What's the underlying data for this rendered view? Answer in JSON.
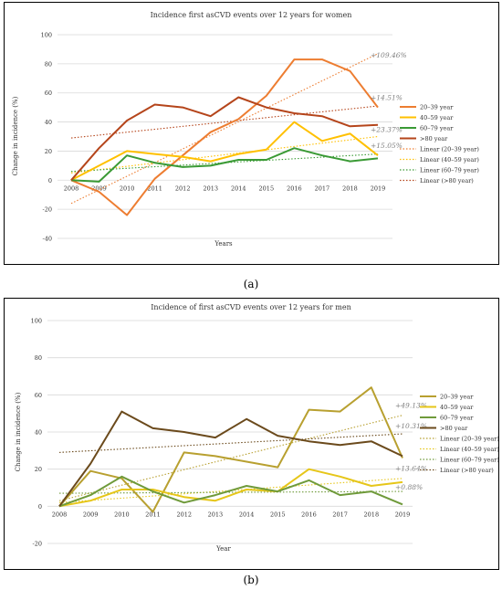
{
  "captions": [
    "(a)",
    "(b)"
  ],
  "legend_colors": [
    "#e8742a",
    "#f5b400",
    "#339933",
    "#b0401a"
  ],
  "chart_data": [
    {
      "type": "line",
      "title": "Incidence first asCVD events over 12 years for women",
      "xlabel": "Years",
      "ylabel": "Change in incidence (%)",
      "ylim": [
        -40,
        100
      ],
      "yticks": [
        -40,
        -20,
        0,
        20,
        40,
        60,
        80,
        100
      ],
      "grid": true,
      "legend_position": "right",
      "categories": [
        "2008",
        "2009",
        "2010",
        "2011",
        "2012",
        "2013",
        "2014",
        "2015",
        "2016",
        "2017",
        "2018",
        "2019"
      ],
      "series": [
        {
          "name": "20–39 year",
          "color": "#ed7d31",
          "values": [
            0,
            -8,
            -24,
            1,
            17,
            33,
            42,
            58,
            83,
            83,
            75,
            50
          ]
        },
        {
          "name": "40–59 year",
          "color": "#ffc000",
          "values": [
            0,
            10,
            20,
            18,
            16,
            13,
            18,
            21,
            40,
            27,
            32,
            17
          ]
        },
        {
          "name": "60–79 year",
          "color": "#3a9a35",
          "values": [
            0,
            -1,
            17,
            12,
            9,
            10,
            14,
            14,
            22,
            17,
            13,
            15
          ]
        },
        {
          "name": ">80 year",
          "color": "#b5451b",
          "values": [
            0,
            22,
            41,
            52,
            50,
            44,
            57,
            50,
            46,
            44,
            37,
            38
          ]
        }
      ],
      "trendlines": [
        {
          "name": "Linear (20–39 year)",
          "color": "#ed7d31",
          "start": -16,
          "end": 87
        },
        {
          "name": "Linear (40–59 year)",
          "color": "#ffc000",
          "start": 5,
          "end": 30
        },
        {
          "name": "Linear (60–79 year)",
          "color": "#3a9a35",
          "start": 6,
          "end": 18
        },
        {
          "name": "Linear (>80 year)",
          "color": "#b5451b",
          "start": 29,
          "end": 51
        }
      ],
      "annotations": [
        {
          "text": "+109.46%",
          "x": "2019",
          "y": 83
        },
        {
          "text": "+14.51%",
          "x": "2019",
          "y": 54
        },
        {
          "text": "+23.37%",
          "x": "2019",
          "y": 32
        },
        {
          "text": "+15.05%",
          "x": "2019",
          "y": 21
        }
      ]
    },
    {
      "type": "line",
      "title": "Incidence of first asCVD events over 12 years for men",
      "xlabel": "Year",
      "ylabel": "Change in incidence (%)",
      "ylim": [
        -20,
        100
      ],
      "yticks": [
        -20,
        0,
        20,
        40,
        60,
        80,
        100
      ],
      "grid": true,
      "legend_position": "right",
      "categories": [
        "2008",
        "2009",
        "2010",
        "2011",
        "2012",
        "2013",
        "2014",
        "2015",
        "2016",
        "2017",
        "2018",
        "2019"
      ],
      "series": [
        {
          "name": "20–39 year",
          "color": "#b8a030",
          "values": [
            0,
            19,
            15,
            -3,
            29,
            27,
            24,
            21,
            52,
            51,
            64,
            26
          ]
        },
        {
          "name": "40–59 year",
          "color": "#e6c619",
          "values": [
            0,
            3,
            9,
            9,
            5,
            3,
            9,
            8,
            20,
            16,
            11,
            13
          ]
        },
        {
          "name": "60–79 year",
          "color": "#6f9a3a",
          "values": [
            0,
            6,
            16,
            8,
            2,
            6,
            11,
            8,
            14,
            6,
            8,
            1
          ]
        },
        {
          "name": ">80 year",
          "color": "#6b4a1c",
          "values": [
            0,
            23,
            51,
            42,
            40,
            37,
            47,
            38,
            35,
            33,
            35,
            27
          ]
        }
      ],
      "trendlines": [
        {
          "name": "Linear (20–39 year)",
          "color": "#b8a030",
          "start": 3,
          "end": 49
        },
        {
          "name": "Linear (40–59 year)",
          "color": "#e6c619",
          "start": 2,
          "end": 15
        },
        {
          "name": "Linear (60–79 year)",
          "color": "#6f9a3a",
          "start": 7,
          "end": 8
        },
        {
          "name": "Linear (>80 year)",
          "color": "#6b4a1c",
          "start": 29,
          "end": 39
        }
      ],
      "annotations": [
        {
          "text": "+49.13%",
          "x": "2019",
          "y": 52
        },
        {
          "text": "+10.31%",
          "x": "2019",
          "y": 41
        },
        {
          "text": "+13.64%",
          "x": "2019",
          "y": 18
        },
        {
          "text": "+0.88%",
          "x": "2019",
          "y": 8
        }
      ]
    }
  ]
}
